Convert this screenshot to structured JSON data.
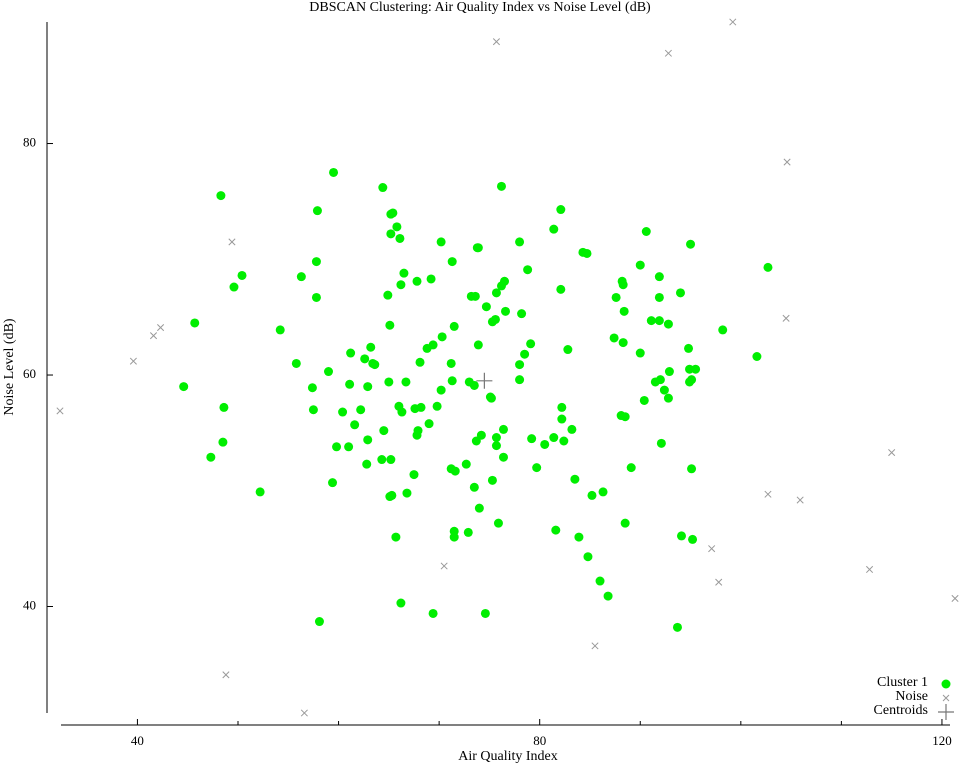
{
  "chart_data": {
    "type": "scatter",
    "title": "DBSCAN Clustering: Air Quality Index vs Noise Level (dB)",
    "x_label": "Air Quality Index",
    "y_label": "Noise Level (dB)",
    "xlim": [
      32.4,
      120.8
    ],
    "ylim": [
      30.8,
      90.5
    ],
    "xticks": [
      40,
      80,
      120
    ],
    "xminorticks": [
      50,
      60,
      70,
      90,
      100,
      110
    ],
    "yticks": [
      40,
      60,
      80
    ],
    "legend": "lower right",
    "series": [
      {
        "name": "Cluster 1",
        "color": "#00ee00",
        "marker": "circle",
        "x": [
          48.3,
          49.6,
          50.4,
          45.7,
          44.6,
          48.6,
          48.5,
          47.3,
          52.2,
          54.2,
          55.8,
          56.3,
          57.8,
          57.9,
          57.8,
          59.5,
          57.4,
          59.0,
          57.5,
          60.4,
          61.1,
          61.2,
          59.8,
          61.0,
          59.4,
          58.1,
          61.6,
          62.2,
          62.6,
          63.2,
          63.4,
          63.6,
          62.9,
          62.9,
          62.8,
          64.4,
          65.2,
          65.4,
          65.8,
          65.2,
          66.1,
          64.9,
          66.2,
          66.5,
          65.1,
          65.0,
          66.7,
          66.0,
          66.3,
          64.5,
          65.2,
          64.3,
          65.3,
          65.1,
          66.8,
          65.7,
          66.2,
          67.8,
          69.2,
          68.1,
          68.8,
          69.4,
          70.3,
          70.2,
          71.3,
          71.5,
          71.2,
          71.3,
          67.6,
          68.2,
          69.8,
          70.2,
          67.8,
          67.9,
          69.0,
          67.5,
          71.2,
          71.6,
          72.7,
          71.5,
          71.5,
          72.9,
          69.4,
          73.2,
          73.6,
          73.8,
          73.9,
          74.7,
          73.9,
          73.0,
          73.5,
          75.2,
          75.1,
          73.7,
          74.2,
          73.5,
          74.0,
          75.3,
          75.9,
          74.6,
          75.3,
          75.6,
          75.7,
          76.2,
          76.5,
          76.6,
          76.2,
          75.7,
          75.7,
          76.4,
          76.4,
          78.0,
          78.2,
          78.8,
          79.1,
          78.5,
          78.0,
          78.0,
          79.2,
          79.7,
          80.5,
          81.4,
          81.4,
          82.1,
          82.1,
          82.2,
          82.2,
          82.4,
          82.8,
          83.2,
          83.5,
          81.6,
          83.9,
          84.3,
          84.7,
          84.8,
          85.2,
          86.3,
          86.0,
          86.8,
          87.4,
          87.6,
          88.2,
          88.3,
          88.4,
          88.3,
          88.1,
          88.5,
          88.5,
          89.1,
          90.0,
          90.6,
          90.0,
          90.4,
          91.1,
          91.5,
          91.9,
          91.9,
          91.9,
          92.0,
          92.4,
          92.1,
          92.8,
          92.9,
          92.8,
          94.0,
          94.1,
          93.7,
          95.0,
          94.8,
          94.9,
          95.5,
          94.9,
          95.1,
          95.1,
          95.2,
          98.2,
          101.6,
          102.7
        ],
        "y": [
          75.5,
          67.6,
          68.6,
          64.5,
          59.0,
          57.2,
          54.2,
          52.9,
          49.9,
          63.9,
          61.0,
          68.5,
          69.8,
          74.2,
          66.7,
          77.5,
          58.9,
          60.3,
          57.0,
          56.8,
          59.2,
          61.9,
          53.8,
          53.8,
          50.7,
          38.7,
          55.7,
          57.0,
          61.4,
          62.4,
          61.0,
          60.9,
          59.0,
          54.4,
          52.3,
          76.2,
          73.9,
          74.0,
          72.8,
          72.2,
          71.8,
          66.9,
          67.8,
          68.8,
          64.3,
          59.4,
          59.4,
          57.3,
          56.8,
          55.2,
          52.7,
          52.7,
          49.6,
          49.5,
          49.8,
          46.0,
          40.3,
          68.1,
          68.3,
          61.1,
          62.3,
          62.6,
          63.3,
          71.5,
          69.8,
          64.2,
          61.0,
          59.5,
          57.1,
          57.2,
          57.3,
          58.7,
          54.8,
          55.2,
          55.8,
          51.4,
          51.9,
          51.7,
          52.3,
          46.5,
          46.0,
          46.4,
          39.4,
          66.8,
          66.8,
          71.0,
          71.0,
          65.9,
          62.6,
          59.4,
          59.1,
          58.0,
          58.1,
          54.3,
          54.8,
          50.3,
          48.5,
          50.9,
          47.2,
          39.4,
          64.6,
          64.8,
          67.1,
          67.7,
          68.1,
          65.5,
          76.3,
          54.6,
          53.9,
          55.3,
          52.9,
          71.5,
          65.3,
          69.1,
          62.7,
          61.8,
          60.9,
          59.6,
          54.5,
          52.0,
          54.0,
          54.6,
          72.6,
          74.3,
          67.4,
          57.2,
          56.2,
          54.3,
          62.2,
          55.3,
          51.0,
          46.6,
          46.0,
          70.6,
          70.5,
          44.3,
          49.6,
          49.9,
          42.2,
          40.9,
          63.2,
          66.7,
          68.1,
          67.8,
          65.5,
          62.8,
          56.5,
          56.4,
          47.2,
          52.0,
          69.5,
          72.4,
          61.9,
          57.8,
          64.7,
          59.4,
          64.7,
          66.7,
          68.5,
          59.6,
          58.7,
          54.1,
          64.4,
          60.3,
          58.0,
          67.1,
          46.1,
          38.2,
          71.3,
          62.3,
          60.5,
          60.5,
          59.4,
          59.6,
          51.9,
          45.8,
          63.9,
          61.6,
          69.3
        ]
      },
      {
        "name": "Noise",
        "color": "#999999",
        "marker": "x",
        "x": [
          99.2,
          92.8,
          75.7,
          104.6,
          49.4,
          42.3,
          41.6,
          39.6,
          32.3,
          104.5,
          115.0,
          102.7,
          105.9,
          97.1,
          97.8,
          112.8,
          121.3,
          70.5,
          85.5,
          48.8,
          56.6
        ],
        "y": [
          90.5,
          87.8,
          88.8,
          78.4,
          71.5,
          64.1,
          63.4,
          61.2,
          56.9,
          64.9,
          53.3,
          49.7,
          49.2,
          45.0,
          42.1,
          43.2,
          40.7,
          43.5,
          36.6,
          34.1,
          30.8
        ]
      },
      {
        "name": "Centroids",
        "color": "#777777",
        "marker": "plus",
        "x": [
          74.5
        ],
        "y": [
          59.5
        ]
      }
    ]
  }
}
